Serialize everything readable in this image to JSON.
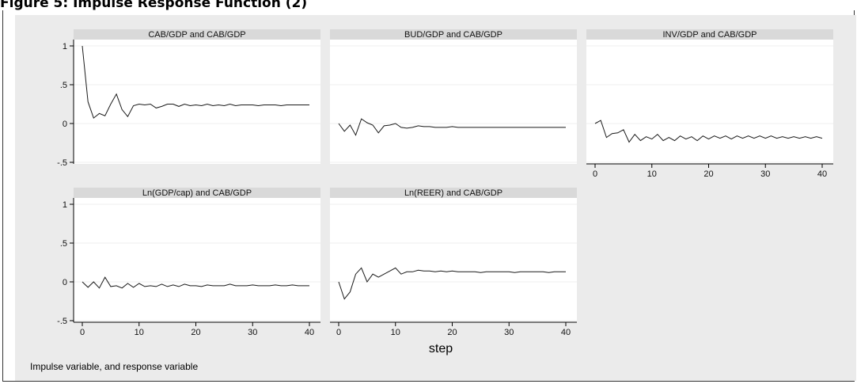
{
  "figure": {
    "title": "Figure 5: Impulse Response Function (2)",
    "note": "Impulse variable, and response variable",
    "xlabel": "step"
  },
  "chart_data": [
    {
      "type": "line",
      "title": "CAB/GDP and CAB/GDP",
      "x": [
        0,
        1,
        2,
        3,
        4,
        5,
        6,
        7,
        8,
        9,
        10,
        11,
        12,
        13,
        14,
        15,
        16,
        17,
        18,
        19,
        20,
        21,
        22,
        23,
        24,
        25,
        26,
        27,
        28,
        29,
        30,
        31,
        32,
        33,
        34,
        35,
        36,
        37,
        38,
        39,
        40
      ],
      "values": [
        1.0,
        0.28,
        0.07,
        0.13,
        0.1,
        0.25,
        0.38,
        0.18,
        0.09,
        0.23,
        0.25,
        0.24,
        0.25,
        0.2,
        0.22,
        0.25,
        0.25,
        0.22,
        0.25,
        0.23,
        0.24,
        0.23,
        0.25,
        0.23,
        0.24,
        0.23,
        0.25,
        0.23,
        0.24,
        0.24,
        0.24,
        0.23,
        0.24,
        0.24,
        0.24,
        0.23,
        0.24,
        0.24,
        0.24,
        0.24,
        0.24
      ],
      "xlim": [
        0,
        40
      ],
      "ylim": [
        -0.5,
        1
      ],
      "yticks": [
        "1",
        ".5",
        "0",
        "-.5"
      ],
      "ytick_values": [
        1,
        0.5,
        0,
        -0.5
      ],
      "xticks": [],
      "xtick_values": []
    },
    {
      "type": "line",
      "title": "BUD/GDP and CAB/GDP",
      "x": [
        0,
        1,
        2,
        3,
        4,
        5,
        6,
        7,
        8,
        9,
        10,
        11,
        12,
        13,
        14,
        15,
        16,
        17,
        18,
        19,
        20,
        21,
        22,
        23,
        24,
        25,
        26,
        27,
        28,
        29,
        30,
        31,
        32,
        33,
        34,
        35,
        36,
        37,
        38,
        39,
        40
      ],
      "values": [
        0.0,
        -0.1,
        -0.02,
        -0.15,
        0.06,
        0.01,
        -0.02,
        -0.12,
        -0.03,
        -0.02,
        0.0,
        -0.05,
        -0.06,
        -0.05,
        -0.03,
        -0.04,
        -0.04,
        -0.05,
        -0.05,
        -0.05,
        -0.04,
        -0.05,
        -0.05,
        -0.05,
        -0.05,
        -0.05,
        -0.05,
        -0.05,
        -0.05,
        -0.05,
        -0.05,
        -0.05,
        -0.05,
        -0.05,
        -0.05,
        -0.05,
        -0.05,
        -0.05,
        -0.05,
        -0.05,
        -0.05
      ],
      "xlim": [
        0,
        40
      ],
      "ylim": [
        -0.5,
        1
      ],
      "yticks": [],
      "ytick_values": [],
      "xticks": [],
      "xtick_values": []
    },
    {
      "type": "line",
      "title": "INV/GDP and CAB/GDP",
      "x": [
        0,
        1,
        2,
        3,
        4,
        5,
        6,
        7,
        8,
        9,
        10,
        11,
        12,
        13,
        14,
        15,
        16,
        17,
        18,
        19,
        20,
        21,
        22,
        23,
        24,
        25,
        26,
        27,
        28,
        29,
        30,
        31,
        32,
        33,
        34,
        35,
        36,
        37,
        38,
        39,
        40
      ],
      "values": [
        0.0,
        0.04,
        -0.18,
        -0.13,
        -0.12,
        -0.08,
        -0.24,
        -0.14,
        -0.22,
        -0.17,
        -0.2,
        -0.14,
        -0.22,
        -0.18,
        -0.22,
        -0.16,
        -0.2,
        -0.17,
        -0.22,
        -0.16,
        -0.2,
        -0.16,
        -0.19,
        -0.16,
        -0.2,
        -0.16,
        -0.19,
        -0.16,
        -0.19,
        -0.16,
        -0.19,
        -0.16,
        -0.19,
        -0.17,
        -0.19,
        -0.17,
        -0.19,
        -0.17,
        -0.19,
        -0.17,
        -0.19
      ],
      "xlim": [
        0,
        40
      ],
      "ylim": [
        -0.5,
        1
      ],
      "yticks": [],
      "ytick_values": [],
      "xticks": [
        "0",
        "10",
        "20",
        "30",
        "40"
      ],
      "xtick_values": [
        0,
        10,
        20,
        30,
        40
      ]
    },
    {
      "type": "line",
      "title": "Ln(GDP/cap) and CAB/GDP",
      "x": [
        0,
        1,
        2,
        3,
        4,
        5,
        6,
        7,
        8,
        9,
        10,
        11,
        12,
        13,
        14,
        15,
        16,
        17,
        18,
        19,
        20,
        21,
        22,
        23,
        24,
        25,
        26,
        27,
        28,
        29,
        30,
        31,
        32,
        33,
        34,
        35,
        36,
        37,
        38,
        39,
        40
      ],
      "values": [
        0.0,
        -0.07,
        0.0,
        -0.08,
        0.06,
        -0.06,
        -0.05,
        -0.08,
        -0.02,
        -0.07,
        -0.02,
        -0.06,
        -0.05,
        -0.06,
        -0.03,
        -0.06,
        -0.04,
        -0.06,
        -0.03,
        -0.05,
        -0.05,
        -0.06,
        -0.04,
        -0.05,
        -0.05,
        -0.05,
        -0.03,
        -0.05,
        -0.05,
        -0.05,
        -0.04,
        -0.05,
        -0.05,
        -0.05,
        -0.04,
        -0.05,
        -0.05,
        -0.04,
        -0.05,
        -0.05,
        -0.05
      ],
      "xlim": [
        0,
        40
      ],
      "ylim": [
        -0.5,
        1
      ],
      "yticks": [
        "1",
        ".5",
        "0",
        "-.5"
      ],
      "ytick_values": [
        1,
        0.5,
        0,
        -0.5
      ],
      "xticks": [
        "0",
        "10",
        "20",
        "30",
        "40"
      ],
      "xtick_values": [
        0,
        10,
        20,
        30,
        40
      ]
    },
    {
      "type": "line",
      "title": "Ln(REER) and CAB/GDP",
      "x": [
        0,
        1,
        2,
        3,
        4,
        5,
        6,
        7,
        8,
        9,
        10,
        11,
        12,
        13,
        14,
        15,
        16,
        17,
        18,
        19,
        20,
        21,
        22,
        23,
        24,
        25,
        26,
        27,
        28,
        29,
        30,
        31,
        32,
        33,
        34,
        35,
        36,
        37,
        38,
        39,
        40
      ],
      "values": [
        0.0,
        -0.22,
        -0.13,
        0.1,
        0.18,
        0.0,
        0.1,
        0.06,
        0.1,
        0.14,
        0.18,
        0.1,
        0.13,
        0.13,
        0.15,
        0.14,
        0.14,
        0.13,
        0.14,
        0.13,
        0.14,
        0.13,
        0.13,
        0.13,
        0.13,
        0.12,
        0.13,
        0.13,
        0.13,
        0.13,
        0.13,
        0.12,
        0.13,
        0.13,
        0.13,
        0.13,
        0.13,
        0.12,
        0.13,
        0.13,
        0.13
      ],
      "xlim": [
        0,
        40
      ],
      "ylim": [
        -0.5,
        1
      ],
      "yticks": [],
      "ytick_values": [],
      "xticks": [
        "0",
        "10",
        "20",
        "30",
        "40"
      ],
      "xtick_values": [
        0,
        10,
        20,
        30,
        40
      ]
    }
  ]
}
